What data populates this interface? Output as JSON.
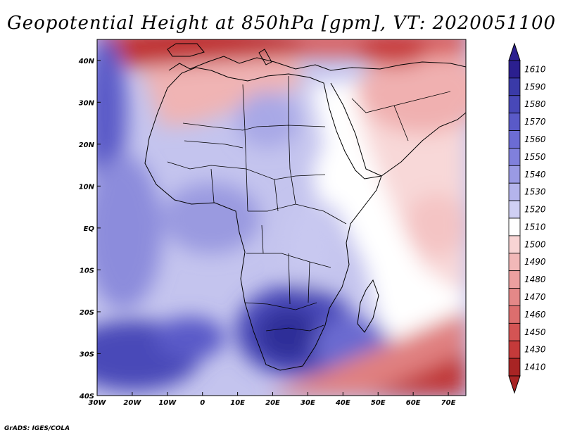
{
  "title": "Geopotential Height at 850hPa [gpm], VT: 2020051100",
  "credit": "GrADS: IGES/COLA",
  "map": {
    "variable": "Geopotential Height",
    "level": "850hPa",
    "units": "gpm",
    "valid_time": "2020051100",
    "lon_range": [
      -30,
      75
    ],
    "lat_range": [
      -40,
      45
    ],
    "lon_labels": [
      "30W",
      "20W",
      "10W",
      "0",
      "10E",
      "20E",
      "30E",
      "40E",
      "50E",
      "60E",
      "70E"
    ],
    "lon_values": [
      -30,
      -20,
      -10,
      0,
      10,
      20,
      30,
      40,
      50,
      60,
      70
    ],
    "lat_labels": [
      "40N",
      "30N",
      "20N",
      "10N",
      "EQ",
      "10S",
      "20S",
      "30S",
      "40S"
    ],
    "lat_values": [
      40,
      30,
      20,
      10,
      0,
      -10,
      -20,
      -30,
      -40
    ]
  },
  "colorbar": {
    "levels": [
      "1610",
      "1590",
      "1580",
      "1570",
      "1560",
      "1550",
      "1540",
      "1530",
      "1520",
      "1510",
      "1500",
      "1490",
      "1480",
      "1470",
      "1460",
      "1450",
      "1430",
      "1410"
    ],
    "colors": [
      "#2b1f8f",
      "#3a3aa8",
      "#4848b8",
      "#5a5ac8",
      "#6c6cd4",
      "#8080dc",
      "#9a9ae4",
      "#b4b4ec",
      "#d0d0f4",
      "#ffffff",
      "#f8d4d4",
      "#f2b8b8",
      "#eca0a0",
      "#e48888",
      "#dc6e6e",
      "#d45454",
      "#c43a3a",
      "#a82424"
    ]
  }
}
